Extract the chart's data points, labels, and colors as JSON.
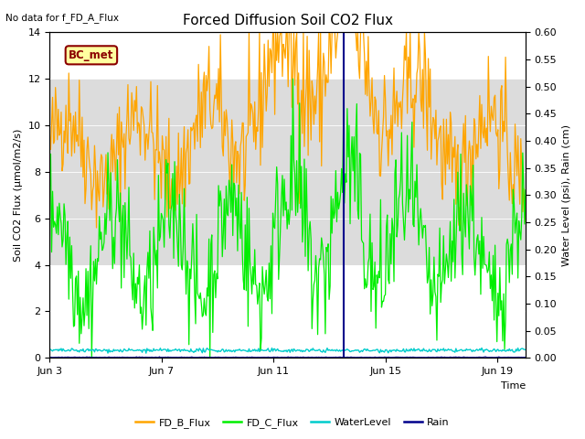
{
  "title": "Forced Diffusion Soil CO2 Flux",
  "top_left_text": "No data for f_FD_A_Flux",
  "box_label": "BC_met",
  "xlabel": "Time",
  "ylabel_left": "Soil CO2 Flux (μmol/m2/s)",
  "ylabel_right": "Water Level (psi), Rain (cm)",
  "ylim_left": [
    0,
    14
  ],
  "ylim_right": [
    0,
    0.6
  ],
  "yticks_left": [
    0,
    2,
    4,
    6,
    8,
    10,
    12,
    14
  ],
  "yticks_right": [
    0.0,
    0.05,
    0.1,
    0.15,
    0.2,
    0.25,
    0.3,
    0.35,
    0.4,
    0.45,
    0.5,
    0.55,
    0.6
  ],
  "xtick_labels": [
    "Jun 3",
    "Jun 7",
    "Jun 11",
    "Jun 15",
    "Jun 19"
  ],
  "xtick_positions": [
    0,
    4,
    8,
    12,
    16
  ],
  "xlim": [
    0,
    17
  ],
  "vline_x": 10.5,
  "vline_color": "#00008B",
  "FD_B_color": "#FFA500",
  "FD_C_color": "#00EE00",
  "WaterLevel_color": "#00CCCC",
  "Rain_color": "#00008B",
  "shading_color": "#DCDCDC",
  "shading_ymin": 4,
  "shading_ymax": 12,
  "background_color": "#FFFFFF",
  "legend_labels": [
    "FD_B_Flux",
    "FD_C_Flux",
    "WaterLevel",
    "Rain"
  ],
  "title_fontsize": 11,
  "label_fontsize": 8,
  "tick_fontsize": 8,
  "box_facecolor": "#FFFFA0",
  "box_edgecolor": "#8B0000",
  "box_textcolor": "#8B0000"
}
